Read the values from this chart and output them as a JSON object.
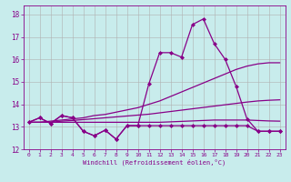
{
  "xlabel": "Windchill (Refroidissement éolien,°C)",
  "background_color": "#c8ecec",
  "grid_color": "#b0b0b0",
  "line_color": "#880088",
  "xlim": [
    -0.5,
    23.5
  ],
  "ylim": [
    12,
    18.4
  ],
  "xticks": [
    0,
    1,
    2,
    3,
    4,
    5,
    6,
    7,
    8,
    9,
    10,
    11,
    12,
    13,
    14,
    15,
    16,
    17,
    18,
    19,
    20,
    21,
    22,
    23
  ],
  "yticks": [
    12,
    13,
    14,
    15,
    16,
    17,
    18
  ],
  "series": [
    {
      "y": [
        13.2,
        13.4,
        13.15,
        13.5,
        13.4,
        12.8,
        12.6,
        12.85,
        12.45,
        13.05,
        13.05,
        14.9,
        16.3,
        16.3,
        16.1,
        17.55,
        17.8,
        16.7,
        16.0,
        14.8,
        13.35,
        12.8,
        12.8,
        12.8
      ],
      "marker": true
    },
    {
      "y": [
        13.2,
        13.2,
        13.25,
        13.3,
        13.35,
        13.4,
        13.5,
        13.55,
        13.65,
        13.75,
        13.85,
        14.0,
        14.15,
        14.35,
        14.55,
        14.75,
        14.95,
        15.15,
        15.35,
        15.55,
        15.7,
        15.8,
        15.85,
        15.85
      ],
      "marker": false
    },
    {
      "y": [
        13.2,
        13.2,
        13.2,
        13.25,
        13.28,
        13.32,
        13.36,
        13.4,
        13.44,
        13.48,
        13.52,
        13.56,
        13.62,
        13.68,
        13.74,
        13.8,
        13.86,
        13.92,
        13.98,
        14.04,
        14.1,
        14.15,
        14.18,
        14.2
      ],
      "marker": false
    },
    {
      "y": [
        13.2,
        13.2,
        13.2,
        13.2,
        13.2,
        13.2,
        13.2,
        13.2,
        13.2,
        13.2,
        13.2,
        13.2,
        13.2,
        13.22,
        13.24,
        13.26,
        13.28,
        13.3,
        13.3,
        13.3,
        13.3,
        13.28,
        13.26,
        13.25
      ],
      "marker": false
    },
    {
      "y": [
        13.2,
        13.4,
        13.15,
        13.5,
        13.4,
        12.8,
        12.6,
        12.85,
        12.45,
        13.05,
        13.05,
        13.05,
        13.05,
        13.05,
        13.05,
        13.05,
        13.05,
        13.05,
        13.05,
        13.05,
        13.05,
        12.8,
        12.8,
        12.8
      ],
      "marker": true
    }
  ],
  "marker_symbol": "D",
  "markersize": 2.0,
  "linewidth": 0.9
}
